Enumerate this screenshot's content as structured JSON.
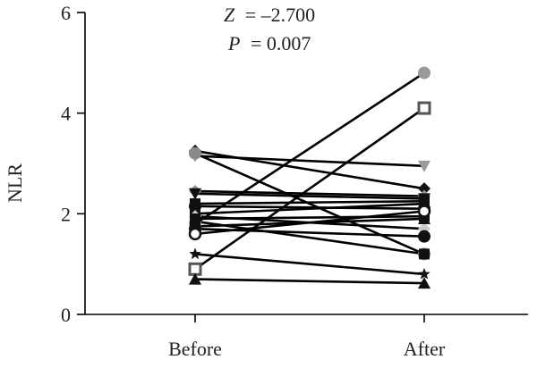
{
  "chart_data": {
    "type": "line",
    "title": "",
    "xlabel": "",
    "ylabel": "NLR",
    "categories": [
      "Before",
      "After"
    ],
    "ylim": [
      0,
      6
    ],
    "yticks": [
      0,
      2,
      4,
      6
    ],
    "grid": false,
    "annotations": {
      "z_label": "Z",
      "z_value": "= –2.700",
      "p_label": "P",
      "p_value": "= 0.007"
    },
    "series": [
      {
        "values": [
          1.8,
          4.8
        ],
        "marker": "circle",
        "color": "#9a9a9a"
      },
      {
        "values": [
          0.9,
          4.1
        ],
        "marker": "square-open",
        "color": "#555555"
      },
      {
        "values": [
          3.15,
          2.95
        ],
        "marker": "triangle-down",
        "color": "#9a9a9a"
      },
      {
        "values": [
          3.25,
          2.5
        ],
        "marker": "diamond",
        "color": "#111111"
      },
      {
        "values": [
          3.2,
          1.2
        ],
        "marker": "circle",
        "color": "#8a8a8a"
      },
      {
        "values": [
          2.45,
          2.35
        ],
        "marker": "diamond",
        "color": "#999999"
      },
      {
        "values": [
          2.4,
          2.3
        ],
        "marker": "triangle-down",
        "color": "#111111"
      },
      {
        "values": [
          2.2,
          2.25
        ],
        "marker": "square",
        "color": "#111111"
      },
      {
        "values": [
          2.15,
          2.1
        ],
        "marker": "circle",
        "color": "#111111"
      },
      {
        "values": [
          2.0,
          2.2
        ],
        "marker": "square",
        "color": "#111111"
      },
      {
        "values": [
          1.95,
          1.7
        ],
        "marker": "diamond",
        "color": "#cccccc"
      },
      {
        "values": [
          1.9,
          1.95
        ],
        "marker": "square",
        "color": "#111111"
      },
      {
        "values": [
          1.85,
          1.2
        ],
        "marker": "square",
        "color": "#111111"
      },
      {
        "values": [
          1.75,
          1.9
        ],
        "marker": "triangle-up",
        "color": "#111111"
      },
      {
        "values": [
          1.7,
          1.55
        ],
        "marker": "circle",
        "color": "#111111"
      },
      {
        "values": [
          1.6,
          2.05
        ],
        "marker": "circle-open",
        "color": "#111111"
      },
      {
        "values": [
          1.2,
          0.8
        ],
        "marker": "star",
        "color": "#111111"
      },
      {
        "values": [
          0.7,
          0.62
        ],
        "marker": "triangle-up",
        "color": "#111111"
      }
    ]
  }
}
